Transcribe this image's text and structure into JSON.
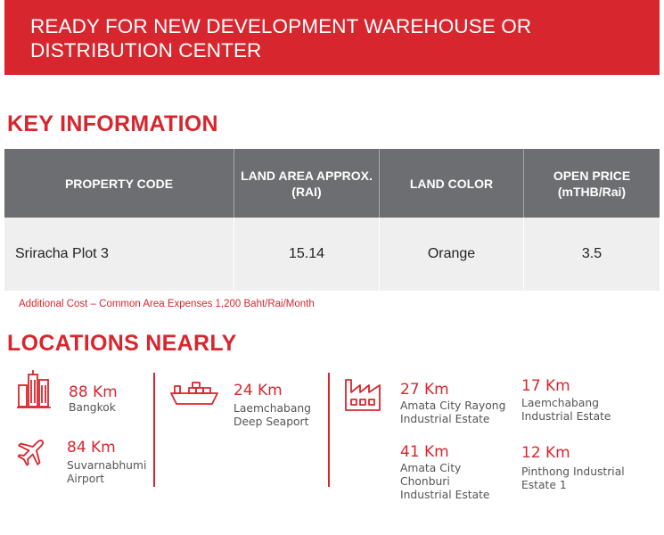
{
  "banner": {
    "title": "READY FOR NEW DEVELOPMENT WAREHOUSE OR DISTRIBUTION CENTER"
  },
  "key_information": {
    "title": "KEY INFORMATION",
    "headers": [
      "PROPERTY CODE",
      "LAND AREA APPROX. (RAI)",
      "LAND COLOR",
      "OPEN PRICE (mTHB/Rai)"
    ],
    "row": [
      "Sriracha Plot 3",
      "15.14",
      "Orange",
      "3.5"
    ],
    "note": "Additional Cost – Common Area Expenses 1,200 Baht/Rai/Month"
  },
  "locations": {
    "title": "LOCATIONS NEARLY",
    "items": [
      {
        "km": "88 Km",
        "place": "Bangkok",
        "icon": "city-buildings-icon"
      },
      {
        "km": "84 Km",
        "place": "Suvarnabhumi Airport",
        "icon": "airplane-icon"
      },
      {
        "km": "24 Km",
        "place": "Laemchabang Deep Seaport",
        "icon": "cargo-ship-icon"
      },
      {
        "km": "27 Km",
        "place": "Amata City Rayong Industrial Estate",
        "icon": "factory-icon"
      },
      {
        "km": "41 Km",
        "place": "Amata City Chonburi Industrial Estate",
        "icon": "factory-icon"
      },
      {
        "km": "17 Km",
        "place": "Laemchabang Industrial Estate"
      },
      {
        "km": "12 Km",
        "place": "Pinthong Industrial Estate 1"
      }
    ]
  },
  "colors": {
    "accent": "#d7262e",
    "header_gray": "#6d6e71",
    "row_gray": "#efefef"
  }
}
